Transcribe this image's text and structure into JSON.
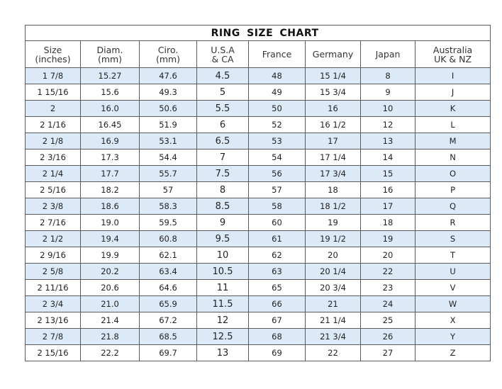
{
  "title": "RING SIZE CHART",
  "columns": [
    {
      "line1": "Size",
      "line2": "(inches)"
    },
    {
      "line1": "Diam.",
      "line2": "(mm)"
    },
    {
      "line1": "Ciro.",
      "line2": "(mm)"
    },
    {
      "line1": "U.S.A",
      "line2": "& CA"
    },
    {
      "line1": "France",
      "line2": ""
    },
    {
      "line1": "Germany",
      "line2": ""
    },
    {
      "line1": "Japan",
      "line2": ""
    },
    {
      "line1": "Australia",
      "line2": "UK & NZ"
    }
  ],
  "rows": [
    [
      "1 7/8",
      "15.27",
      "47.6",
      "4.5",
      "48",
      "15 1/4",
      "8",
      "I"
    ],
    [
      "1 15/16",
      "15.6",
      "49.3",
      "5",
      "49",
      "15 3/4",
      "9",
      "J"
    ],
    [
      "2",
      "16.0",
      "50.6",
      "5.5",
      "50",
      "16",
      "10",
      "K"
    ],
    [
      "2 1/16",
      "16.45",
      "51.9",
      "6",
      "52",
      "16 1/2",
      "12",
      "L"
    ],
    [
      "2 1/8",
      "16.9",
      "53.1",
      "6.5",
      "53",
      "17",
      "13",
      "M"
    ],
    [
      "2 3/16",
      "17.3",
      "54.4",
      "7",
      "54",
      "17 1/4",
      "14",
      "N"
    ],
    [
      "2 1/4",
      "17.7",
      "55.7",
      "7.5",
      "56",
      "17 3/4",
      "15",
      "O"
    ],
    [
      "2 5/16",
      "18.2",
      "57",
      "8",
      "57",
      "18",
      "16",
      "P"
    ],
    [
      "2 3/8",
      "18.6",
      "58.3",
      "8.5",
      "58",
      "18 1/2",
      "17",
      "Q"
    ],
    [
      "2 7/16",
      "19.0",
      "59.5",
      "9",
      "60",
      "19",
      "18",
      "R"
    ],
    [
      "2 1/2",
      "19.4",
      "60.8",
      "9.5",
      "61",
      "19 1/2",
      "19",
      "S"
    ],
    [
      "2 9/16",
      "19.9",
      "62.1",
      "10",
      "62",
      "20",
      "20",
      "T"
    ],
    [
      "2 5/8",
      "20.2",
      "63.4",
      "10.5",
      "63",
      "20 1/4",
      "22",
      "U"
    ],
    [
      "2 11/16",
      "20.6",
      "64.6",
      "11",
      "65",
      "20 3/4",
      "23",
      "V"
    ],
    [
      "2 3/4",
      "21.0",
      "65.9",
      "11.5",
      "66",
      "21",
      "24",
      "W"
    ],
    [
      "2 13/16",
      "21.4",
      "67.2",
      "12",
      "67",
      "21 1/4",
      "25",
      "X"
    ],
    [
      "2 7/8",
      "21.8",
      "68.5",
      "12.5",
      "68",
      "21 3/4",
      "26",
      "Y"
    ],
    [
      "2 15/16",
      "22.2",
      "69.7",
      "13",
      "69",
      "22",
      "27",
      "Z"
    ]
  ],
  "colors": {
    "stripe": "#dceaf8",
    "border": "#5a5a5a"
  }
}
